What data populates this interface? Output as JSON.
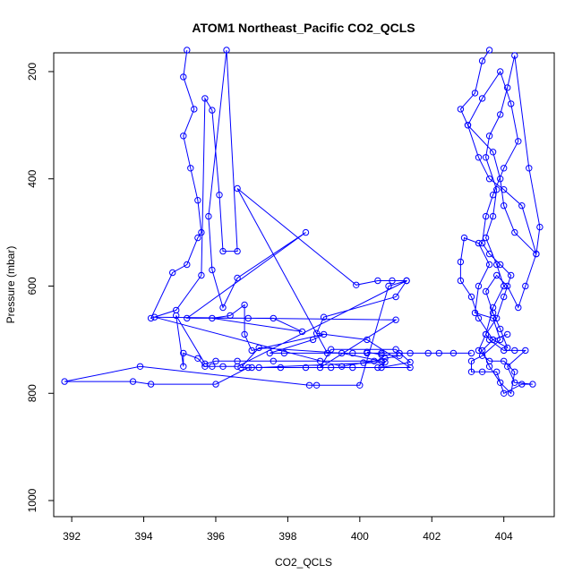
{
  "chart_data": {
    "type": "line",
    "title": "ATOM1 Northeast_Pacific CO2_QCLS",
    "xlabel": "CO2_QCLS",
    "ylabel": "Pressure (mbar)",
    "xlim": [
      391.5,
      405.4
    ],
    "ylim": [
      1030,
      165
    ],
    "y_reversed": true,
    "grid": false,
    "marker": "open-circle",
    "series_color": "#0000ff",
    "x_ticks": [
      {
        "value": 392,
        "label": "392"
      },
      {
        "value": 394,
        "label": "394"
      },
      {
        "value": 396,
        "label": "396"
      },
      {
        "value": 398,
        "label": "398"
      },
      {
        "value": 400,
        "label": "400"
      },
      {
        "value": 402,
        "label": "402"
      },
      {
        "value": 404,
        "label": "404"
      }
    ],
    "y_ticks": [
      {
        "value": 200,
        "label": "200"
      },
      {
        "value": 400,
        "label": "400"
      },
      {
        "value": 600,
        "label": "600"
      },
      {
        "value": 800,
        "label": "800"
      },
      {
        "value": 1000,
        "label": "1000"
      }
    ],
    "series": [
      {
        "points": [
          [
            395.2,
            160
          ],
          [
            395.1,
            210
          ],
          [
            395.4,
            270
          ],
          [
            395.1,
            320
          ],
          [
            395.3,
            380
          ],
          [
            395.5,
            440
          ],
          [
            395.6,
            500
          ],
          [
            395.5,
            510
          ],
          [
            395.2,
            560
          ],
          [
            394.8,
            575
          ],
          [
            394.2,
            660
          ],
          [
            394.9,
            645
          ],
          [
            395.6,
            580
          ],
          [
            395.7,
            250
          ],
          [
            395.9,
            272
          ],
          [
            396.1,
            430
          ],
          [
            396.2,
            535
          ],
          [
            396.6,
            535
          ],
          [
            396.3,
            160
          ],
          [
            395.8,
            470
          ],
          [
            395.9,
            570
          ],
          [
            396.2,
            640
          ],
          [
            396.6,
            585
          ],
          [
            398.5,
            500
          ],
          [
            395.2,
            660
          ],
          [
            396.9,
            660
          ],
          [
            397.6,
            660
          ],
          [
            398.4,
            685
          ],
          [
            395.9,
            660
          ],
          [
            396.4,
            655
          ],
          [
            396.8,
            635
          ],
          [
            396.8,
            690
          ],
          [
            397.0,
            720
          ],
          [
            399.0,
            690
          ],
          [
            398.7,
            700
          ],
          [
            397.5,
            725
          ],
          [
            397.9,
            725
          ],
          [
            399.8,
            725
          ],
          [
            400.6,
            725
          ],
          [
            401.4,
            725
          ],
          [
            401.9,
            725
          ],
          [
            402.6,
            725
          ],
          [
            403.1,
            725
          ],
          [
            402.2,
            725
          ],
          [
            401.1,
            725
          ],
          [
            400.2,
            725
          ],
          [
            399.1,
            725
          ],
          [
            396.6,
            418
          ],
          [
            399.9,
            598
          ],
          [
            400.5,
            590
          ],
          [
            400.9,
            590
          ],
          [
            401.3,
            590
          ],
          [
            396.6,
            750
          ],
          [
            396.2,
            750
          ],
          [
            395.9,
            750
          ],
          [
            395.7,
            750
          ],
          [
            395.5,
            735
          ],
          [
            395.1,
            725
          ],
          [
            395.1,
            750
          ],
          [
            394.9,
            655
          ],
          [
            395.7,
            745
          ],
          [
            396.0,
            740
          ],
          [
            396.6,
            740
          ],
          [
            397.6,
            740
          ],
          [
            398.9,
            740
          ],
          [
            400.6,
            740
          ],
          [
            399.5,
            725
          ],
          [
            397.2,
            715
          ],
          [
            396.7,
            752
          ],
          [
            397.0,
            752
          ],
          [
            397.8,
            752
          ],
          [
            398.5,
            752
          ],
          [
            399.2,
            752
          ],
          [
            399.8,
            752
          ],
          [
            400.5,
            752
          ],
          [
            401.4,
            752
          ],
          [
            400.2,
            700
          ],
          [
            398.8,
            688
          ],
          [
            399.0,
            658
          ],
          [
            401.0,
            620
          ],
          [
            401.3,
            590
          ],
          [
            400.8,
            600
          ],
          [
            400.0,
            785
          ],
          [
            398.8,
            785
          ],
          [
            398.6,
            785
          ],
          [
            393.9,
            750
          ],
          [
            391.8,
            778
          ],
          [
            393.7,
            778
          ],
          [
            394.2,
            783
          ],
          [
            396.0,
            783
          ],
          [
            396.9,
            752
          ],
          [
            397.2,
            752
          ],
          [
            400.7,
            742
          ],
          [
            400.6,
            752
          ],
          [
            401.4,
            742
          ],
          [
            401.0,
            718
          ],
          [
            399.2,
            718
          ],
          [
            398.9,
            752
          ],
          [
            401.0,
            663
          ],
          [
            394.3,
            658
          ],
          [
            399.5,
            750
          ],
          [
            400.1,
            743
          ],
          [
            400.4,
            740
          ],
          [
            400.7,
            735
          ],
          [
            401.1,
            730
          ],
          [
            400.6,
            728
          ],
          [
            400.2,
            723
          ]
        ]
      },
      {
        "points": [
          [
            403.6,
            160
          ],
          [
            403.4,
            180
          ],
          [
            403.2,
            240
          ],
          [
            402.8,
            270
          ],
          [
            403.0,
            300
          ],
          [
            403.7,
            350
          ],
          [
            403.9,
            400
          ],
          [
            404.0,
            450
          ],
          [
            404.3,
            500
          ],
          [
            404.9,
            540
          ],
          [
            405.0,
            490
          ],
          [
            404.7,
            380
          ],
          [
            404.3,
            170
          ],
          [
            404.1,
            230
          ],
          [
            403.9,
            280
          ],
          [
            403.6,
            320
          ],
          [
            403.5,
            360
          ],
          [
            403.8,
            420
          ],
          [
            403.7,
            470
          ],
          [
            403.5,
            510
          ],
          [
            403.8,
            560
          ],
          [
            404.0,
            600
          ],
          [
            403.7,
            640
          ],
          [
            403.5,
            690
          ],
          [
            403.6,
            700
          ],
          [
            404.0,
            720
          ],
          [
            404.3,
            720
          ],
          [
            404.6,
            720
          ],
          [
            404.1,
            750
          ],
          [
            404.3,
            780
          ],
          [
            404.8,
            783
          ],
          [
            404.5,
            783
          ],
          [
            404.0,
            800
          ],
          [
            403.8,
            760
          ],
          [
            403.4,
            760
          ],
          [
            403.1,
            760
          ],
          [
            403.1,
            740
          ],
          [
            403.4,
            730
          ],
          [
            403.9,
            700
          ],
          [
            403.7,
            660
          ],
          [
            403.2,
            650
          ],
          [
            403.3,
            600
          ],
          [
            403.6,
            560
          ],
          [
            403.3,
            520
          ],
          [
            402.9,
            510
          ],
          [
            402.8,
            555
          ],
          [
            402.8,
            590
          ],
          [
            403.1,
            620
          ],
          [
            403.3,
            660
          ],
          [
            403.7,
            700
          ],
          [
            404.1,
            715
          ],
          [
            403.9,
            680
          ],
          [
            403.7,
            650
          ],
          [
            403.5,
            610
          ],
          [
            403.8,
            580
          ],
          [
            404.1,
            600
          ],
          [
            404.4,
            640
          ],
          [
            404.6,
            600
          ],
          [
            404.9,
            540
          ],
          [
            404.5,
            450
          ],
          [
            404.0,
            420
          ],
          [
            403.6,
            400
          ],
          [
            403.3,
            360
          ],
          [
            403.0,
            300
          ],
          [
            403.4,
            250
          ],
          [
            403.9,
            200
          ],
          [
            404.2,
            260
          ],
          [
            404.4,
            330
          ],
          [
            404.0,
            380
          ],
          [
            403.7,
            430
          ],
          [
            403.5,
            470
          ],
          [
            403.4,
            520
          ],
          [
            403.6,
            540
          ],
          [
            403.9,
            560
          ],
          [
            404.2,
            580
          ],
          [
            404.0,
            620
          ],
          [
            403.8,
            660
          ],
          [
            403.5,
            690
          ],
          [
            403.3,
            720
          ],
          [
            403.6,
            740
          ],
          [
            404.0,
            740
          ],
          [
            404.3,
            760
          ],
          [
            404.2,
            800
          ],
          [
            403.9,
            780
          ],
          [
            403.6,
            750
          ],
          [
            403.4,
            720
          ],
          [
            403.7,
            700
          ],
          [
            404.1,
            690
          ]
        ]
      }
    ]
  }
}
